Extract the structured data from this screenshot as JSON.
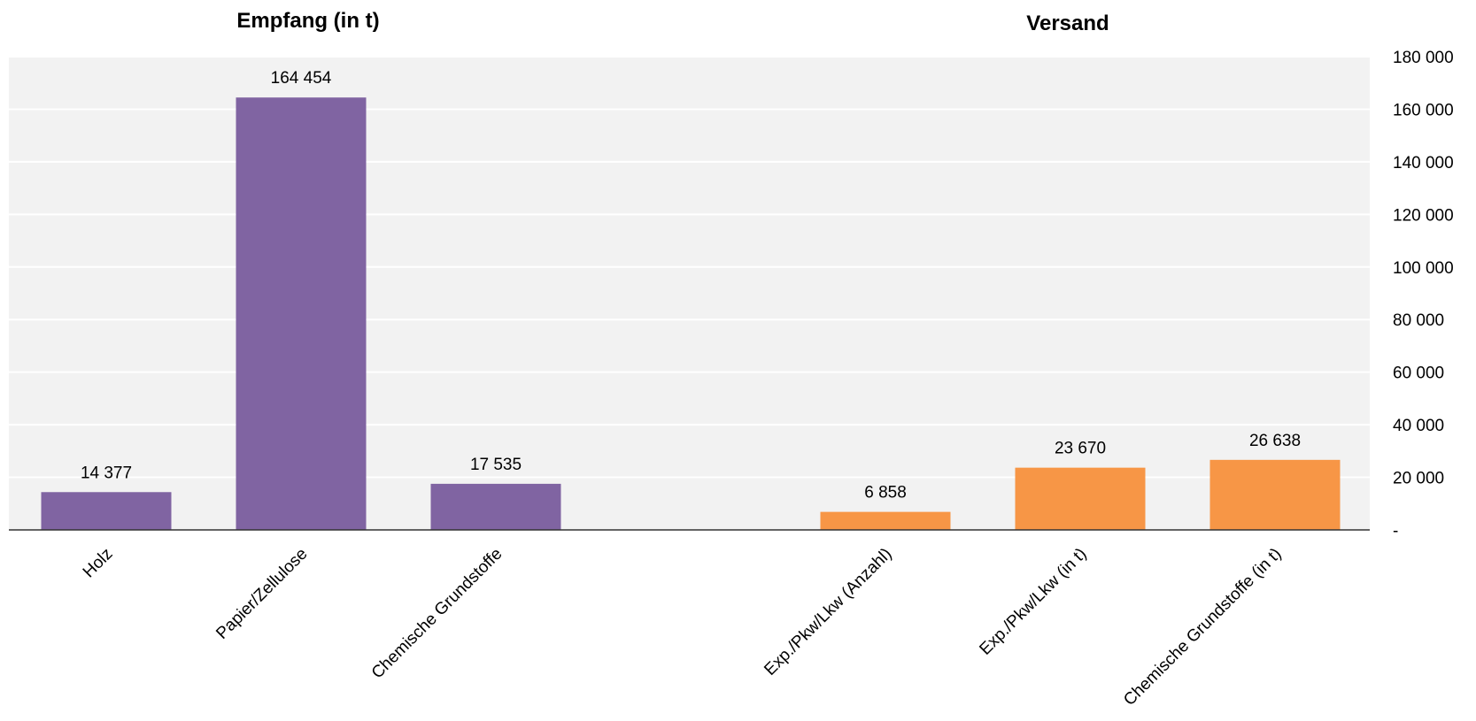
{
  "chart_data": {
    "type": "bar",
    "ylim": [
      0,
      180000
    ],
    "grid": true,
    "yaxis_position": "right",
    "y_ticks": [
      {
        "value": 0,
        "label": "-"
      },
      {
        "value": 20000,
        "label": "20 000"
      },
      {
        "value": 40000,
        "label": "40 000"
      },
      {
        "value": 60000,
        "label": "60 000"
      },
      {
        "value": 80000,
        "label": "80 000"
      },
      {
        "value": 100000,
        "label": "100 000"
      },
      {
        "value": 120000,
        "label": "120 000"
      },
      {
        "value": 140000,
        "label": "140 000"
      },
      {
        "value": 160000,
        "label": "160 000"
      },
      {
        "value": 180000,
        "label": "180 000"
      }
    ],
    "groups": [
      {
        "title": "Empfang (in t)",
        "color": "#8064a2",
        "categories": [
          "Holz",
          "Papier/Zellulose",
          "Chemische Grundstoffe"
        ],
        "values": [
          14377,
          164454,
          17535
        ],
        "value_labels": [
          "14 377",
          "164 454",
          "17 535"
        ]
      },
      {
        "title": "Versand",
        "color": "#f79646",
        "categories": [
          "Exp./Pkw/Lkw (Anzahl)",
          "Exp./Pkw/Lkw (in t)",
          "Chemische Grundstoffe (in t)"
        ],
        "values": [
          6858,
          23670,
          26638
        ],
        "value_labels": [
          "6 858",
          "23 670",
          "26 638"
        ]
      }
    ]
  }
}
